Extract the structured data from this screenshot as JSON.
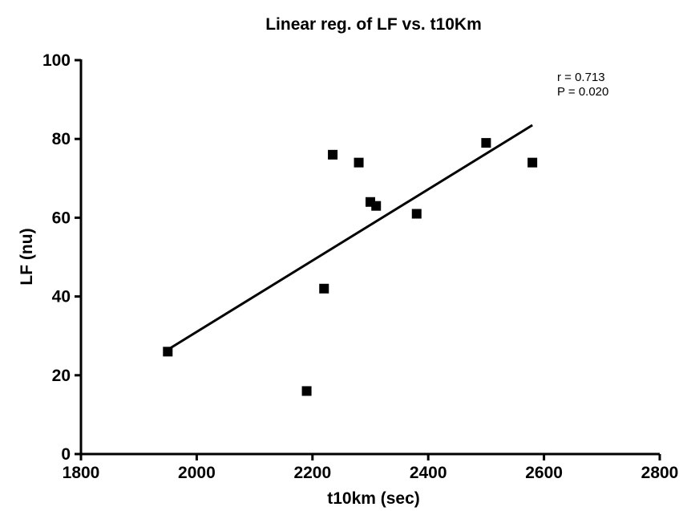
{
  "chart_data": {
    "type": "scatter",
    "title": "Linear reg. of LF vs. t10Km",
    "xlabel": "t10km (sec)",
    "ylabel": "LF (nu)",
    "xlim": [
      1800,
      2800
    ],
    "ylim": [
      0,
      100
    ],
    "xticks": [
      1800,
      2000,
      2200,
      2400,
      2600,
      2800
    ],
    "yticks": [
      0,
      20,
      40,
      60,
      80,
      100
    ],
    "points": [
      {
        "x": 1950,
        "y": 26
      },
      {
        "x": 2190,
        "y": 16
      },
      {
        "x": 2220,
        "y": 42
      },
      {
        "x": 2235,
        "y": 76
      },
      {
        "x": 2280,
        "y": 74
      },
      {
        "x": 2300,
        "y": 64
      },
      {
        "x": 2310,
        "y": 63
      },
      {
        "x": 2380,
        "y": 61
      },
      {
        "x": 2500,
        "y": 79
      },
      {
        "x": 2580,
        "y": 74
      }
    ],
    "regression": {
      "x_start": 1950,
      "y_start": 26.5,
      "x_end": 2580,
      "y_end": 83.5
    },
    "annotations": {
      "r_text": "r = 0.713",
      "p_text": "P = 0.020"
    },
    "grid": false
  }
}
